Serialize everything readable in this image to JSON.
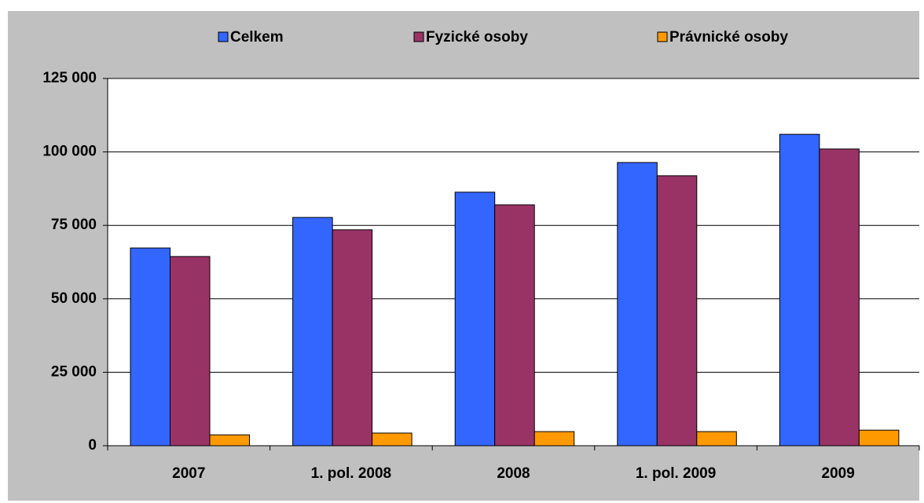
{
  "chart_data": {
    "type": "bar",
    "categories": [
      "2007",
      "1. pol. 2008",
      "2008",
      "1. pol. 2009",
      "2009"
    ],
    "series": [
      {
        "name": "Celkem",
        "color": "#3366ff",
        "values": [
          67300,
          77700,
          86300,
          96400,
          106000
        ]
      },
      {
        "name": "Fyzické osoby",
        "color": "#993366",
        "values": [
          64400,
          73500,
          82000,
          91900,
          101000
        ]
      },
      {
        "name": "Právnické osoby",
        "color": "#ff9900",
        "values": [
          3700,
          4300,
          4800,
          4800,
          5300
        ]
      }
    ],
    "ylim": [
      0,
      125000
    ],
    "yticks": [
      {
        "value": 0,
        "label": "0"
      },
      {
        "value": 25000,
        "label": "25 000"
      },
      {
        "value": 50000,
        "label": "50 000"
      },
      {
        "value": 75000,
        "label": "75 000"
      },
      {
        "value": 100000,
        "label": "100 000"
      },
      {
        "value": 125000,
        "label": "125 000"
      }
    ],
    "grid": true,
    "legend": "top"
  }
}
